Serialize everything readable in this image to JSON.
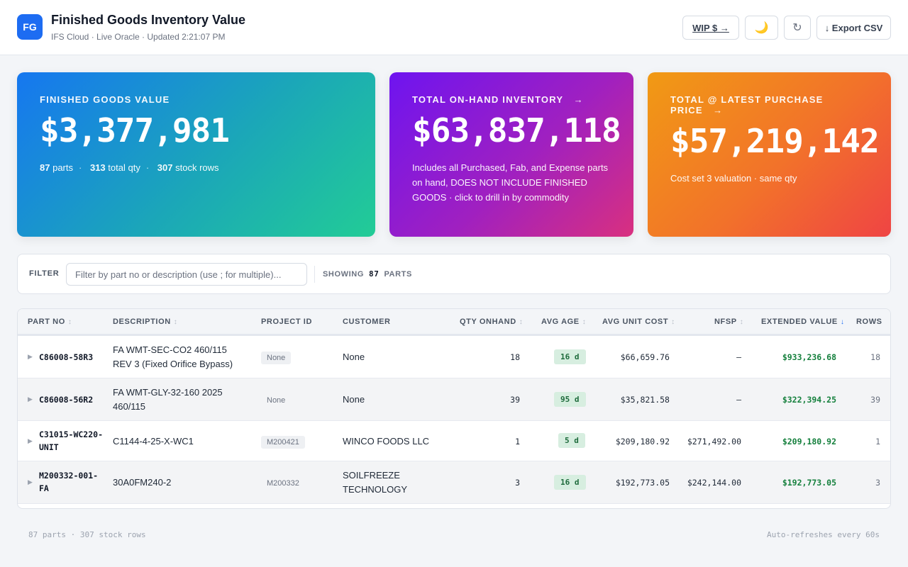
{
  "header": {
    "logo": "FG",
    "title": "Finished Goods Inventory Value",
    "subtitle": "IFS Cloud · Live Oracle · Updated 2:21:07 PM",
    "wip_label": "WIP $ →",
    "moon_glyph": "🌙",
    "refresh_glyph": "↻",
    "export_label": "↓ Export CSV"
  },
  "cards": [
    {
      "label": "FINISHED GOODS VALUE",
      "value": "$3,377,981",
      "parts": "87",
      "parts_label": "parts",
      "qty": "313",
      "qty_label": "total qty",
      "rows": "307",
      "rows_label": "stock rows"
    },
    {
      "label": "TOTAL ON-HAND INVENTORY",
      "arrow": "→",
      "value": "$63,837,118",
      "sub": "Includes all Purchased, Fab, and Expense parts on hand, DOES NOT INCLUDE FINISHED GOODS · click to drill in by commodity"
    },
    {
      "label": "TOTAL @ LATEST PURCHASE PRICE",
      "arrow": "→",
      "value": "$57,219,142",
      "sub": "Cost set 3 valuation · same qty"
    }
  ],
  "filter": {
    "label": "FILTER",
    "placeholder": "Filter by part no or description (use ; for multiple)...",
    "showing_label": "SHOWING",
    "showing_count": "87",
    "showing_suffix": "PARTS"
  },
  "table": {
    "columns": [
      "PART NO",
      "DESCRIPTION",
      "PROJECT ID",
      "CUSTOMER",
      "QTY ONHAND",
      "AVG AGE",
      "AVG UNIT COST",
      "NFSP",
      "EXTENDED VALUE",
      "ROWS"
    ],
    "sort_glyph": "↕",
    "sort_active_glyph": "↓",
    "caret_glyph": "▶",
    "rows": [
      {
        "part": "C86008-58R3",
        "desc": "FA WMT-SEC-CO2 460/115 REV 3 (Fixed Orifice Bypass)",
        "project": "None",
        "customer": "None",
        "qty": "18",
        "age": "16 d",
        "unit_cost": "$66,659.76",
        "nfsp": "–",
        "ext": "$933,236.68",
        "rows": "18"
      },
      {
        "part": "C86008-56R2",
        "desc": "FA WMT-GLY-32-160 2025 460/115",
        "project": "None",
        "customer": "None",
        "qty": "39",
        "age": "95 d",
        "unit_cost": "$35,821.58",
        "nfsp": "–",
        "ext": "$322,394.25",
        "rows": "39"
      },
      {
        "part": "C31015-WC220-UNIT",
        "desc": "C1144-4-25-X-WC1",
        "project": "M200421",
        "customer": "WINCO FOODS LLC",
        "qty": "1",
        "age": "5 d",
        "unit_cost": "$209,180.92",
        "nfsp": "$271,492.00",
        "ext": "$209,180.92",
        "rows": "1"
      },
      {
        "part": "M200332-001-FA",
        "desc": "30A0FM240-2",
        "project": "M200332",
        "customer": "SOILFREEZE TECHNOLOGY",
        "qty": "3",
        "age": "16 d",
        "unit_cost": "$192,773.05",
        "nfsp": "$242,144.00",
        "ext": "$192,773.05",
        "rows": "3"
      }
    ]
  },
  "footer": {
    "left": "87 parts · 307 stock rows",
    "right": "Auto-refreshes every 60s"
  },
  "colors": {
    "accent": "#1d6cf2",
    "extended_value": "#15803d",
    "age_badge_bg": "#d7eee0"
  }
}
